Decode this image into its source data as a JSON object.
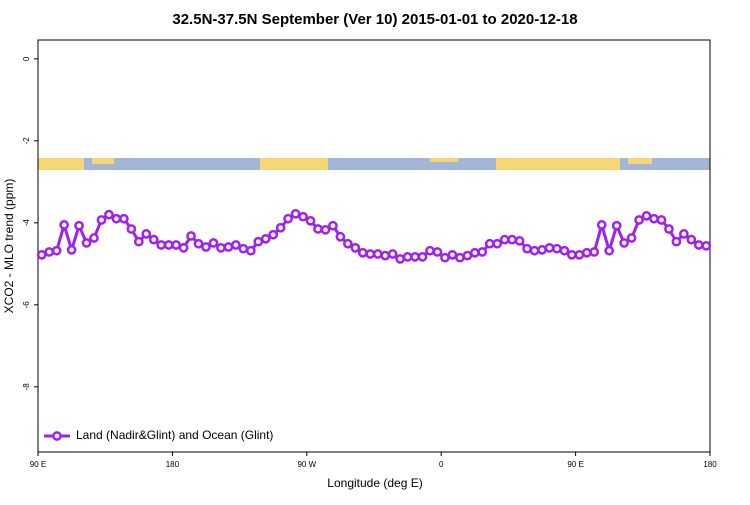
{
  "chart_data": {
    "type": "line",
    "title": "32.5N-37.5N September (Ver 10)   2015-01-01 to 2020-12-18",
    "x_label": "Longitude (deg E)",
    "y_label": "XCO2 - MLO trend (ppm)",
    "xlim": [
      90,
      540
    ],
    "ylim": [
      0.46,
      -9.59
    ],
    "xticks": [
      {
        "value": 90,
        "label": "90 E"
      },
      {
        "value": 180,
        "label": "180"
      },
      {
        "value": 270,
        "label": "90 W"
      },
      {
        "value": 360,
        "label": "0"
      },
      {
        "value": 450,
        "label": "90 E"
      },
      {
        "value": 540,
        "label": "180"
      }
    ],
    "yticks": [
      0,
      -2,
      -4,
      -6,
      -8
    ],
    "legend": "bottom-left",
    "x": [
      92.5,
      97.5,
      102.5,
      107.5,
      112.5,
      117.5,
      122.5,
      127.5,
      132.5,
      137.5,
      142.5,
      147.5,
      152.5,
      157.5,
      162.5,
      167.5,
      172.5,
      177.5,
      182.5,
      187.5,
      192.5,
      197.5,
      202.5,
      207.5,
      212.5,
      217.5,
      222.5,
      227.5,
      232.5,
      237.5,
      242.5,
      247.5,
      252.5,
      257.5,
      262.5,
      267.5,
      272.5,
      277.5,
      282.5,
      287.5,
      292.5,
      297.5,
      302.5,
      307.5,
      312.5,
      317.5,
      322.5,
      327.5,
      332.5,
      337.5,
      342.5,
      347.5,
      352.5,
      357.5,
      362.5,
      367.5,
      372.5,
      377.5,
      382.5,
      387.5,
      392.5,
      397.5,
      402.5,
      407.5,
      412.5,
      417.5,
      422.5,
      427.5,
      432.5,
      437.5,
      442.5,
      447.5,
      452.5,
      457.5,
      462.5,
      467.5,
      472.5,
      477.5,
      482.5,
      487.5,
      492.5,
      497.5,
      502.5,
      507.5,
      512.5,
      517.5,
      522.5,
      527.5,
      532.5,
      537.5
    ],
    "series": [
      {
        "name": "Land (Nadir&Glint) and Ocean (Glint)",
        "color": "#a020f0",
        "values": [
          -4.78,
          -4.71,
          -4.68,
          -4.05,
          -4.66,
          -4.07,
          -4.49,
          -4.37,
          -3.93,
          -3.8,
          -3.9,
          -3.9,
          -4.15,
          -4.46,
          -4.27,
          -4.41,
          -4.54,
          -4.54,
          -4.54,
          -4.61,
          -4.32,
          -4.51,
          -4.59,
          -4.49,
          -4.61,
          -4.59,
          -4.54,
          -4.63,
          -4.68,
          -4.46,
          -4.39,
          -4.29,
          -4.12,
          -3.9,
          -3.78,
          -3.85,
          -3.95,
          -4.15,
          -4.17,
          -4.07,
          -4.34,
          -4.51,
          -4.61,
          -4.73,
          -4.76,
          -4.76,
          -4.8,
          -4.76,
          -4.88,
          -4.83,
          -4.83,
          -4.83,
          -4.68,
          -4.71,
          -4.85,
          -4.78,
          -4.85,
          -4.8,
          -4.73,
          -4.71,
          -4.51,
          -4.51,
          -4.41,
          -4.41,
          -4.44,
          -4.63,
          -4.68,
          -4.66,
          -4.61,
          -4.63,
          -4.68,
          -4.78,
          -4.78,
          -4.73,
          -4.71,
          -4.05,
          -4.68,
          -4.07,
          -4.49,
          -4.37,
          -3.93,
          -3.83,
          -3.9,
          -3.93,
          -4.15,
          -4.46,
          -4.27,
          -4.41,
          -4.54,
          -4.56
        ]
      }
    ]
  }
}
